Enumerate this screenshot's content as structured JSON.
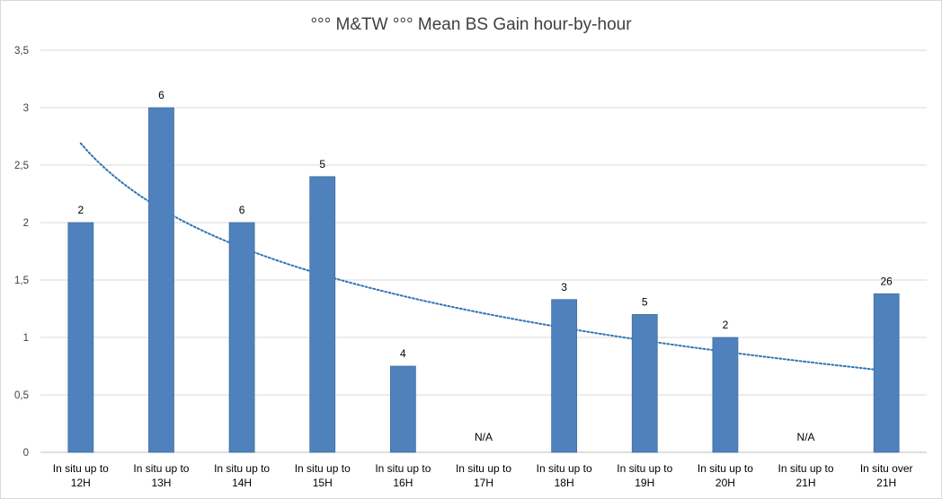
{
  "chart_data": {
    "type": "bar",
    "title": "°°° M&TW °°° Mean BS Gain hour-by-hour",
    "xlabel": "",
    "ylabel": "",
    "ylim": [
      0,
      3.5
    ],
    "yticks": [
      "0",
      "0,5",
      "1",
      "1,5",
      "2",
      "2,5",
      "3",
      "3,5"
    ],
    "grid": true,
    "legend": "none",
    "bar_color": "#4f81bd",
    "trendline": {
      "type": "logarithmic",
      "style": "dotted",
      "color": "#2e75b6",
      "start_value": 2.69,
      "end_value": 0.71
    },
    "categories": [
      [
        "In situ up to",
        "12H"
      ],
      [
        "In situ up to",
        "13H"
      ],
      [
        "In situ up to",
        "14H"
      ],
      [
        "In situ up to",
        "15H"
      ],
      [
        "In situ up to",
        "16H"
      ],
      [
        "In situ up to",
        "17H"
      ],
      [
        "In situ up to",
        "18H"
      ],
      [
        "In situ up to",
        "19H"
      ],
      [
        "In situ up to",
        "20H"
      ],
      [
        "In situ up to",
        "21H"
      ],
      [
        "In situ over",
        "21H"
      ]
    ],
    "values": [
      2,
      3,
      2,
      2.4,
      0.75,
      null,
      1.33,
      1.2,
      1,
      null,
      1.38
    ],
    "data_labels": [
      "2",
      "6",
      "6",
      "5",
      "4",
      "N/A",
      "3",
      "5",
      "2",
      "N/A",
      "26"
    ]
  }
}
